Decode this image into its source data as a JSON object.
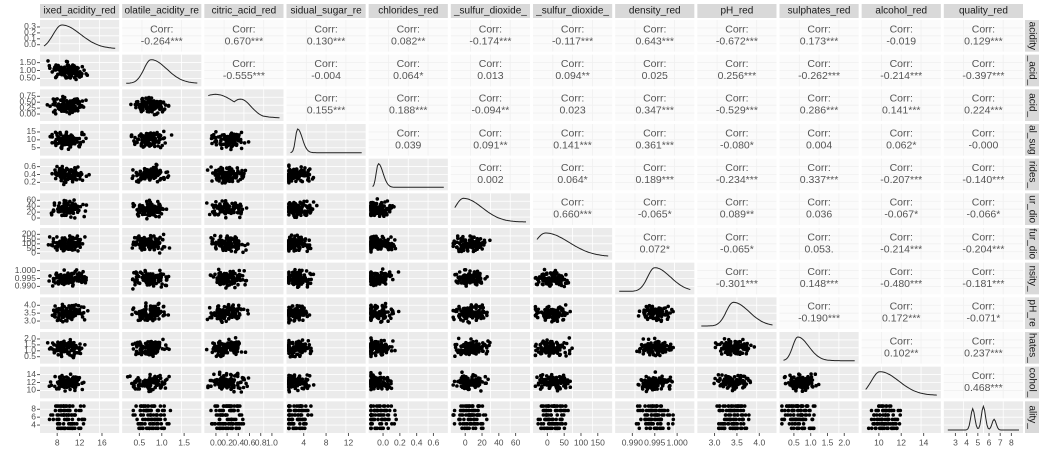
{
  "columns": [
    "ixed_acidity_red",
    "olatile_acidity_re",
    "citric_acid_red",
    "sidual_sugar_re",
    "chlorides_red",
    "_sulfur_dioxide_",
    "_sulfur_dioxide_",
    "density_red",
    "pH_red",
    "sulphates_red",
    "alcohol_red",
    "quality_red"
  ],
  "row_labels": [
    "acidity",
    "_acid_",
    "acid_",
    "al_sug",
    "rides_",
    "ur_dio",
    "fur_dio",
    "nsity_",
    "pH_re",
    "hates_",
    "cohol_",
    "ality_"
  ],
  "corr_label": "Corr:",
  "correlations": [
    [
      "-0.264***",
      "0.670***",
      "0.130***",
      "0.082**",
      "-0.174***",
      "-0.117***",
      "0.643***",
      "-0.672***",
      "0.173***",
      "-0.019",
      "0.129***"
    ],
    [
      "-0.555***",
      "-0.004",
      "0.064*",
      "0.013",
      "0.094**",
      "0.025",
      "0.256***",
      "-0.262***",
      "-0.214***",
      "-0.397***"
    ],
    [
      "0.155***",
      "0.188***",
      "-0.094**",
      "0.023",
      "0.347***",
      "-0.529***",
      "0.286***",
      "0.141***",
      "0.224***"
    ],
    [
      "0.039",
      "0.091**",
      "0.141***",
      "0.361***",
      "-0.080*",
      "0.004",
      "0.062*",
      "-0.000"
    ],
    [
      "0.002",
      "0.064*",
      "0.189***",
      "-0.234***",
      "0.337***",
      "-0.207***",
      "-0.140***"
    ],
    [
      "0.660***",
      "-0.065*",
      "0.089**",
      "0.036",
      "-0.067*",
      "-0.066*"
    ],
    [
      "0.072*",
      "-0.065*",
      "0.053.",
      "-0.214***",
      "-0.204***"
    ],
    [
      "-0.301***",
      "0.148***",
      "-0.480***",
      "-0.181***"
    ],
    [
      "-0.190***",
      "0.172***",
      "-0.071*"
    ],
    [
      "0.102**",
      "0.237***"
    ],
    [
      "0.468***"
    ]
  ],
  "x_ticks": [
    [
      "8",
      "12",
      "16"
    ],
    [
      "0.5",
      "1.0",
      "1.5"
    ],
    [
      "0.0",
      "0.2",
      "0.4",
      "0.6",
      "0.8",
      "1.0"
    ],
    [
      "4",
      "8",
      "12"
    ],
    [
      "0.0",
      "0.2",
      "0.4",
      "0.6"
    ],
    [
      "0",
      "20",
      "40",
      "60"
    ],
    [
      "0",
      "50",
      "100",
      "150"
    ],
    [
      "0.990",
      "0.995",
      "1.000"
    ],
    [
      "3.0",
      "3.5",
      "4.0"
    ],
    [
      "0.5",
      "1.0",
      "1.5",
      "2.0"
    ],
    [
      "10",
      "12",
      "14"
    ],
    [
      "3",
      "4",
      "5",
      "6",
      "7",
      "8"
    ]
  ],
  "y_ticks": [
    [
      "0.3",
      "0.2",
      "0.1",
      "0.0"
    ],
    [
      "1.50",
      "1.00",
      "0.50"
    ],
    [
      "0.75",
      "0.50",
      "0.25",
      "0.00"
    ],
    [
      "15",
      "10",
      "5"
    ],
    [
      "0.6",
      "0.4",
      "0.2"
    ],
    [
      "60",
      "40",
      "20",
      "0"
    ],
    [
      "200",
      "150",
      "100",
      "50",
      "0"
    ],
    [
      "1.000",
      "0.995",
      "0.990"
    ],
    [
      "4.0",
      "3.5",
      "3.0"
    ],
    [
      "2.0",
      "1.5",
      "1.0",
      "0.5"
    ],
    [
      "14",
      "12",
      "10"
    ],
    [
      "8",
      "6",
      "4"
    ]
  ]
}
